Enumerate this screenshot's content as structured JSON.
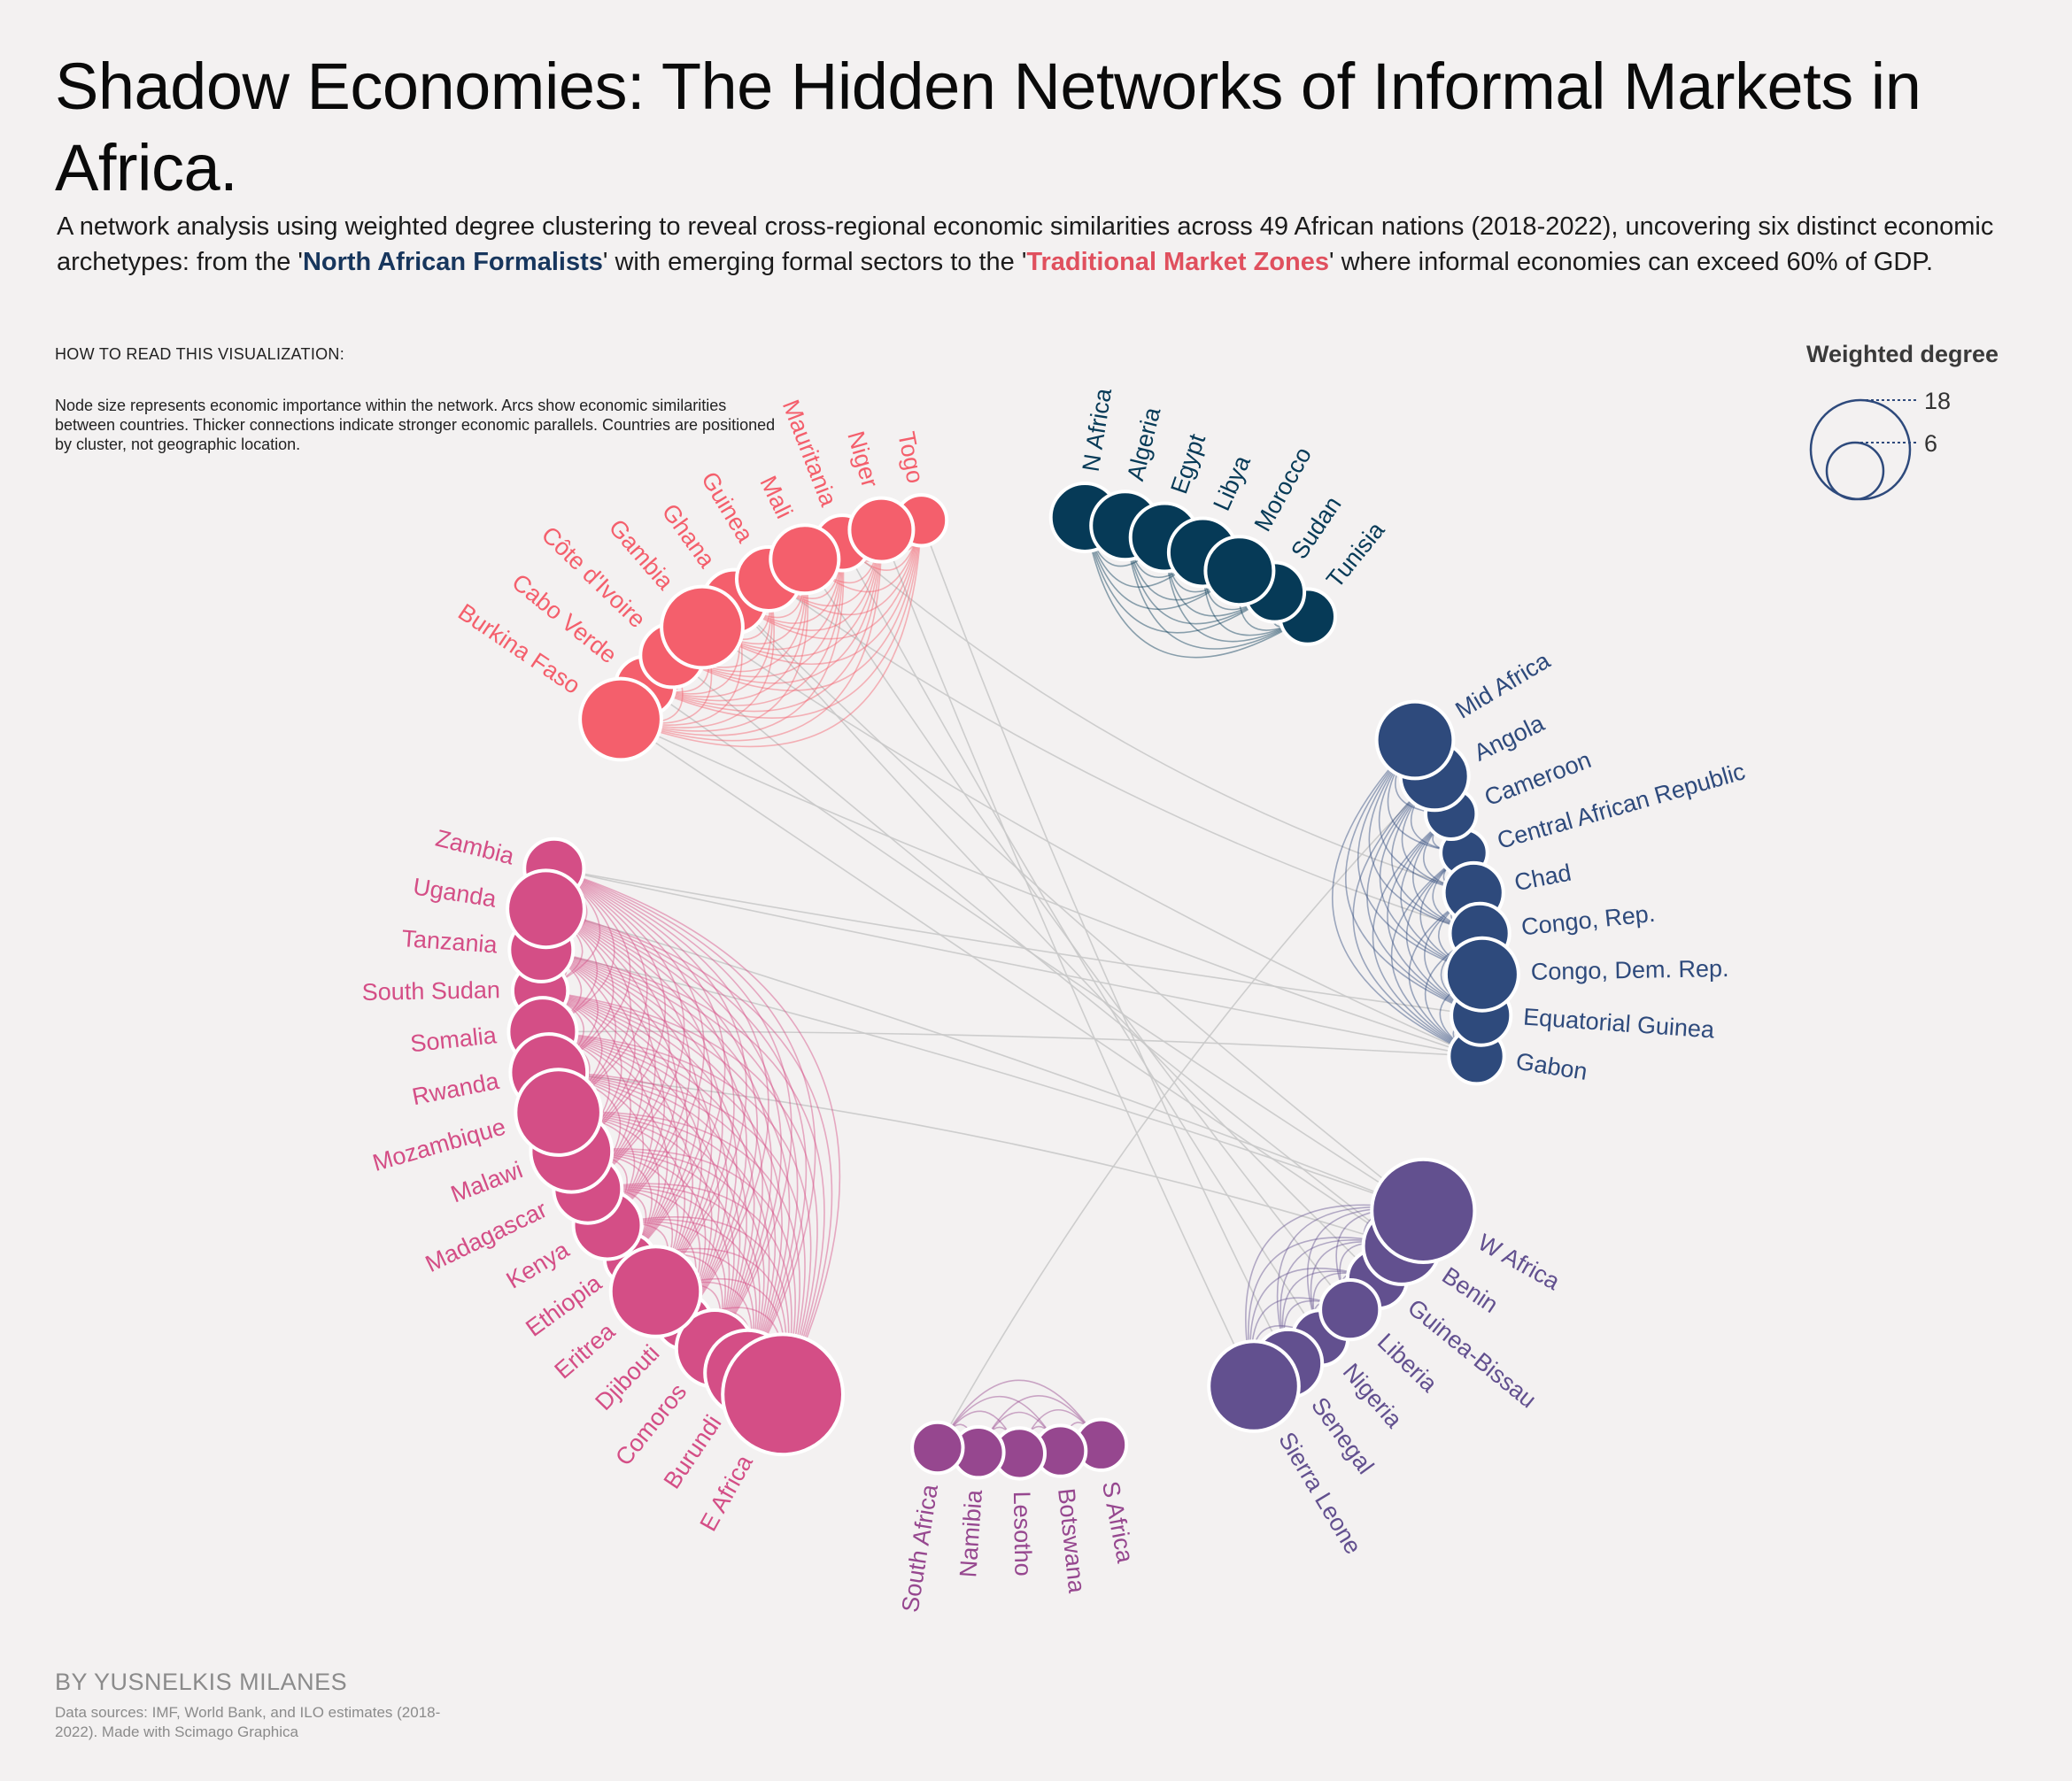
{
  "header": {
    "title": "Shadow Economies: The Hidden Networks of Informal Markets in Africa.",
    "subtitle_parts": {
      "p1": "A network analysis using weighted degree clustering to reveal cross-regional economic similarities across 49 African nations (2018-2022), uncovering six distinct economic archetypes: from the '",
      "h1": "North African Formalists",
      "p2": "' with emerging formal sectors to the '",
      "h2": "Traditional Market Zones",
      "p3": "' where informal economies can exceed 60% of GDP."
    }
  },
  "howto": {
    "title": "HOW TO READ THIS VISUALIZATION:",
    "body": "Node size represents economic importance within the network. Arcs show economic similarities between countries. Thicker connections indicate stronger economic parallels. Countries are positioned by cluster, not geographic location."
  },
  "legend": {
    "title": "Weighted degree",
    "large_value": "18",
    "small_value": "6"
  },
  "footer": {
    "author": "BY YUSNELKIS MILANES",
    "sources": "Data sources: IMF, World Bank, and ILO estimates (2018-2022). Made with Scimago Graphica"
  },
  "colors": {
    "north_africa": "#063a57",
    "mid_africa": "#2e4a7c",
    "west_africa": "#62508f",
    "south_africa": "#96478f",
    "east_africa": "#d44e86",
    "traditional": "#f45f6c",
    "cross_links": "#c9c9c9",
    "background": "#f3f1f1"
  },
  "chart_data": {
    "type": "network",
    "layout": "circular",
    "clusters": [
      {
        "id": "north",
        "color": "#063a57",
        "nodes": [
          {
            "name": "N Africa",
            "w": 10
          },
          {
            "name": "Algeria",
            "w": 10
          },
          {
            "name": "Egypt",
            "w": 10
          },
          {
            "name": "Libya",
            "w": 10
          },
          {
            "name": "Morocco",
            "w": 10
          },
          {
            "name": "Sudan",
            "w": 8
          },
          {
            "name": "Tunisia",
            "w": 7
          }
        ]
      },
      {
        "id": "mid",
        "color": "#2e4a7c",
        "nodes": [
          {
            "name": "Mid Africa",
            "w": 12
          },
          {
            "name": "Angola",
            "w": 10
          },
          {
            "name": "Cameroon",
            "w": 6
          },
          {
            "name": "Central African Republic",
            "w": 5
          },
          {
            "name": "Chad",
            "w": 8
          },
          {
            "name": "Congo, Rep.",
            "w": 8
          },
          {
            "name": "Congo, Dem. Rep.",
            "w": 11
          },
          {
            "name": "Equatorial Guinea",
            "w": 8
          },
          {
            "name": "Gabon",
            "w": 7
          }
        ]
      },
      {
        "id": "west",
        "color": "#62508f",
        "nodes": [
          {
            "name": "W Africa",
            "w": 18
          },
          {
            "name": "Benin",
            "w": 12
          },
          {
            "name": "Guinea-Bissau",
            "w": 8
          },
          {
            "name": "Liberia",
            "w": 8
          },
          {
            "name": "Nigeria",
            "w": 7
          },
          {
            "name": "Senegal",
            "w": 10
          },
          {
            "name": "Sierra Leone",
            "w": 15
          }
        ]
      },
      {
        "id": "south",
        "color": "#96478f",
        "nodes": [
          {
            "name": "S Africa",
            "w": 6
          },
          {
            "name": "Botswana",
            "w": 6
          },
          {
            "name": "Lesotho",
            "w": 6
          },
          {
            "name": "Namibia",
            "w": 6
          },
          {
            "name": "South Africa",
            "w": 6
          }
        ]
      },
      {
        "id": "east",
        "color": "#d44e86",
        "nodes": [
          {
            "name": "E Africa",
            "w": 22
          },
          {
            "name": "Burundi",
            "w": 14
          },
          {
            "name": "Comoros",
            "w": 12
          },
          {
            "name": "Djibouti",
            "w": 7
          },
          {
            "name": "Eritrea",
            "w": 15
          },
          {
            "name": "Ethiopia",
            "w": 6
          },
          {
            "name": "Kenya",
            "w": 10
          },
          {
            "name": "Madagascar",
            "w": 10
          },
          {
            "name": "Malawi",
            "w": 13
          },
          {
            "name": "Mozambique",
            "w": 14
          },
          {
            "name": "Rwanda",
            "w": 12
          },
          {
            "name": "Somalia",
            "w": 10
          },
          {
            "name": "South Sudan",
            "w": 7
          },
          {
            "name": "Tanzania",
            "w": 9
          },
          {
            "name": "Uganda",
            "w": 12
          },
          {
            "name": "Zambia",
            "w": 8
          }
        ]
      },
      {
        "id": "traditional",
        "color": "#f45f6c",
        "nodes": [
          {
            "name": "Burkina Faso",
            "w": 13
          },
          {
            "name": "Cabo Verde",
            "w": 8
          },
          {
            "name": "Côte d'Ivoire",
            "w": 9
          },
          {
            "name": "Gambia",
            "w": 13
          },
          {
            "name": "Ghana",
            "w": 9
          },
          {
            "name": "Guinea",
            "w": 9
          },
          {
            "name": "Mali",
            "w": 10
          },
          {
            "name": "Mauritania",
            "w": 7
          },
          {
            "name": "Niger",
            "w": 9
          },
          {
            "name": "Togo",
            "w": 6
          }
        ]
      }
    ],
    "cross_links": [
      [
        "Zambia",
        "Gabon"
      ],
      [
        "Zambia",
        "Equatorial Guinea"
      ],
      [
        "Uganda",
        "W Africa"
      ],
      [
        "Tanzania",
        "W Africa"
      ],
      [
        "Burkina Faso",
        "Gabon"
      ],
      [
        "Cabo Verde",
        "W Africa"
      ],
      [
        "Côte d'Ivoire",
        "Benin"
      ],
      [
        "Gambia",
        "Gabon"
      ],
      [
        "Ghana",
        "W Africa"
      ],
      [
        "Guinea",
        "Congo, Rep."
      ],
      [
        "Mali",
        "Liberia"
      ],
      [
        "Mauritania",
        "Nigeria"
      ],
      [
        "Niger",
        "Sierra Leone"
      ],
      [
        "Togo",
        "Senegal"
      ],
      [
        "South Africa",
        "Angola"
      ],
      [
        "Somalia",
        "Gabon"
      ],
      [
        "Rwanda",
        "Benin"
      ],
      [
        "Mauritania",
        "Chad"
      ],
      [
        "Ghana",
        "Guinea-Bissau"
      ],
      [
        "Burkina Faso",
        "Benin"
      ]
    ]
  }
}
